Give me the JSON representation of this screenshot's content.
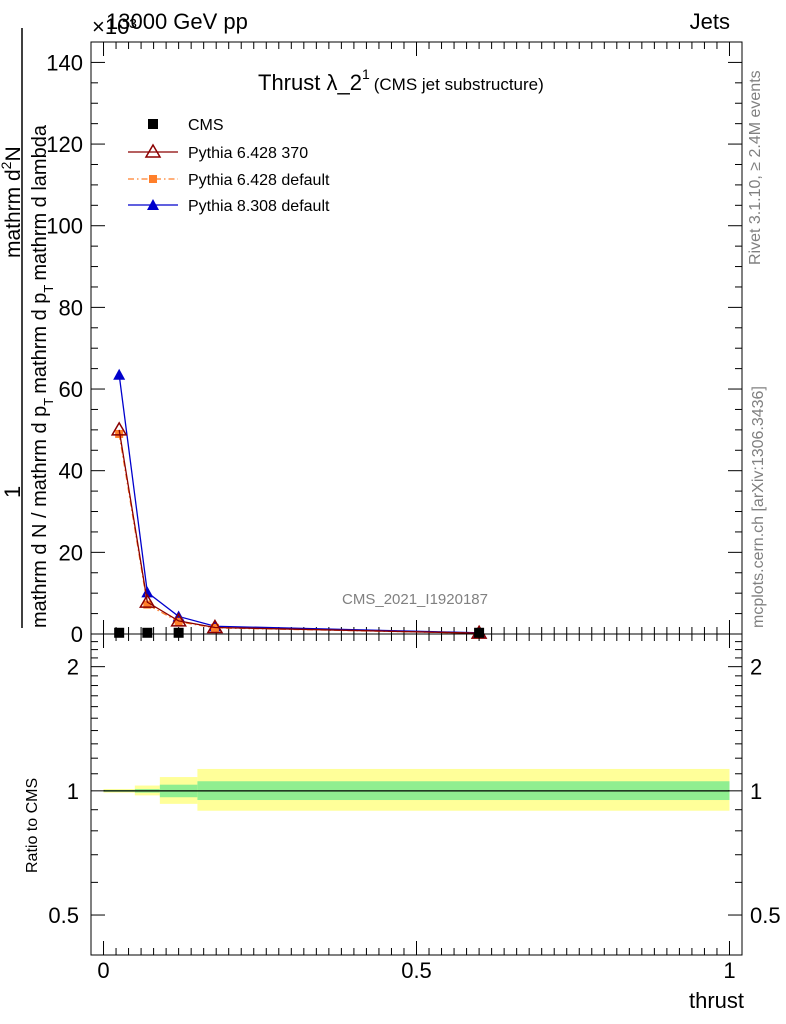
{
  "header": {
    "left": "13000 GeV pp",
    "right": "Jets",
    "exponent": "×10³",
    "analysis_id": "CMS_2021_I1920187"
  },
  "side": {
    "rivet": "Rivet 3.1.10, ≥ 2.4M events",
    "mcplots": "mcplots.cern.ch [arXiv:1306.3436]"
  },
  "chart_data": [
    {
      "type": "line",
      "panel": "main",
      "title": "Thrust λ_2",
      "title_superscript": "1",
      "subtitle": "(CMS jet substructure)",
      "ylabel_num_prefix": "mathrm d",
      "ylabel_num_suffix": "N",
      "ylabel_den": "mathrm d N / mathrm d p",
      "ylabel_den2": "mathrm d p",
      "ylabel_den2_tail": "mathrm d lambda",
      "ylabel_sub": "T",
      "ylabel_sup": "2",
      "ylabel_one": "1",
      "xlim": [
        -0.02,
        1.02
      ],
      "ylim": [
        0,
        145
      ],
      "yticks": [
        0,
        20,
        40,
        60,
        80,
        100,
        120,
        140
      ],
      "ytick_labels": [
        "0",
        "20",
        "40",
        "60",
        "80",
        "100",
        "120",
        "140"
      ],
      "legend_position": "top-left",
      "series": [
        {
          "name": "CMS",
          "color": "#000000",
          "marker": "square",
          "line": "none",
          "x": [
            0.025,
            0.07,
            0.12,
            0.6
          ],
          "y": [
            0.3,
            0.3,
            0.3,
            0.3
          ]
        },
        {
          "name": "Pythia 6.428 370",
          "color": "#8b0000",
          "marker": "triangle-open",
          "line": "solid",
          "x": [
            0.025,
            0.07,
            0.12,
            0.178,
            0.6
          ],
          "y": [
            50,
            7.8,
            3.2,
            1.6,
            0.2
          ]
        },
        {
          "name": "Pythia 6.428 default",
          "color": "#ff7f2a",
          "marker": "square-filled",
          "line": "dashdot",
          "x": [
            0.025,
            0.07,
            0.12,
            0.178,
            0.6
          ],
          "y": [
            49,
            7.2,
            3.0,
            1.5,
            0.2
          ]
        },
        {
          "name": "Pythia 8.308 default",
          "color": "#0000cc",
          "marker": "triangle-filled",
          "line": "solid",
          "x": [
            0.025,
            0.07,
            0.12,
            0.178,
            0.6
          ],
          "y": [
            63.5,
            10.2,
            4.3,
            1.9,
            0.3
          ]
        }
      ]
    },
    {
      "type": "area",
      "panel": "ratio",
      "ylabel": "Ratio to CMS",
      "xlabel": "thrust",
      "xlim": [
        -0.02,
        1.02
      ],
      "ylim": [
        0.4,
        2.4
      ],
      "log_scale": true,
      "yticks": [
        0.5,
        1,
        2
      ],
      "ytick_labels": [
        "0.5",
        "1",
        "2"
      ],
      "xticks": [
        0,
        0.5,
        1
      ],
      "xtick_labels": [
        "0",
        "0.5",
        "1"
      ],
      "reference_line": 1,
      "bands": {
        "edges": [
          0.0,
          0.05,
          0.09,
          0.15,
          1.0
        ],
        "outer_color": "#ffff99",
        "inner_color": "#90ee90",
        "outer_low": [
          0.99,
          0.975,
          0.93,
          0.895
        ],
        "outer_high": [
          1.01,
          1.03,
          1.08,
          1.13
        ],
        "inner_low": [
          0.995,
          0.99,
          0.965,
          0.95
        ],
        "inner_high": [
          1.005,
          1.01,
          1.035,
          1.055
        ]
      }
    }
  ]
}
